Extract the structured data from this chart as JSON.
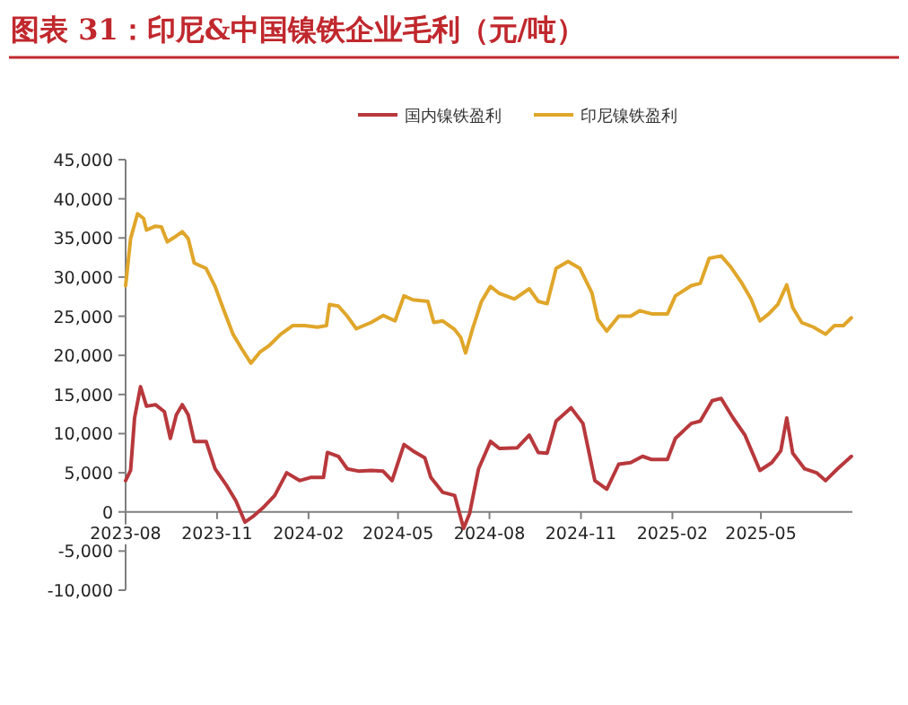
{
  "chart_data": {
    "type": "line",
    "title": "图表 31：印尼&中国镍铁企业毛利（元/吨）",
    "legend": "top",
    "xlim": [
      "2023-08-01",
      "2025-08-01"
    ],
    "xticks": [
      {
        "value": "2023-08-01",
        "label": "2023-08"
      },
      {
        "value": "2023-11-01",
        "label": "2023-11"
      },
      {
        "value": "2024-02-01",
        "label": "2024-02"
      },
      {
        "value": "2024-05-01",
        "label": "2024-05"
      },
      {
        "value": "2024-08-01",
        "label": "2024-08"
      },
      {
        "value": "2024-11-01",
        "label": "2024-11"
      },
      {
        "value": "2025-02-01",
        "label": "2025-02"
      },
      {
        "value": "2025-05-01",
        "label": "2025-05"
      }
    ],
    "ylim": [
      -10000,
      45000
    ],
    "yticks": [
      {
        "value": -10000,
        "label": "-10,000"
      },
      {
        "value": -5000,
        "label": "-5,000"
      },
      0,
      {
        "value": 5000,
        "label": "5,000"
      },
      {
        "value": 10000,
        "label": "10,000"
      },
      {
        "value": 15000,
        "label": "15,000"
      },
      {
        "value": 20000,
        "label": "20,000"
      },
      {
        "value": 25000,
        "label": "25,000"
      },
      {
        "value": 30000,
        "label": "30,000"
      },
      {
        "value": 35000,
        "label": "35,000"
      },
      {
        "value": 40000,
        "label": "40,000"
      },
      {
        "value": 45000,
        "label": "45,000"
      }
    ],
    "series": [
      {
        "name": "国内镍铁盈利",
        "color": "#b8383c",
        "x": [
          "2023-08-01",
          "2023-08-06",
          "2023-08-10",
          "2023-08-16",
          "2023-08-22",
          "2023-08-31",
          "2023-09-09",
          "2023-09-15",
          "2023-09-21",
          "2023-09-27",
          "2023-10-03",
          "2023-10-09",
          "2023-10-21",
          "2023-10-30",
          "2023-11-11",
          "2023-11-20",
          "2023-11-29",
          "2023-12-08",
          "2023-12-17",
          "2023-12-29",
          "2024-01-10",
          "2024-01-23",
          "2024-02-03",
          "2024-02-16",
          "2024-02-20",
          "2024-03-02",
          "2024-03-11",
          "2024-03-23",
          "2024-04-04",
          "2024-04-16",
          "2024-04-25",
          "2024-05-07",
          "2024-05-16",
          "2024-05-28",
          "2024-06-03",
          "2024-06-15",
          "2024-06-27",
          "2024-07-06",
          "2024-07-12",
          "2024-07-21",
          "2024-08-02",
          "2024-08-11",
          "2024-08-29",
          "2024-09-10",
          "2024-09-19",
          "2024-09-28",
          "2024-10-07",
          "2024-10-22",
          "2024-11-03",
          "2024-11-15",
          "2024-11-27",
          "2024-12-09",
          "2024-12-21",
          "2025-01-02",
          "2025-01-11",
          "2025-01-27",
          "2025-02-04",
          "2025-02-20",
          "2025-03-01",
          "2025-03-13",
          "2025-03-22",
          "2025-04-03",
          "2025-04-15",
          "2025-04-30",
          "2025-05-12",
          "2025-05-21",
          "2025-05-27",
          "2025-06-02",
          "2025-06-14",
          "2025-06-26",
          "2025-07-05",
          "2025-07-17",
          "2025-07-31"
        ],
        "values": [
          4000,
          5300,
          12000,
          16000,
          13500,
          13700,
          12800,
          9400,
          12400,
          13700,
          12400,
          9000,
          9000,
          5500,
          3300,
          1400,
          -1300,
          -500,
          500,
          2100,
          5000,
          4000,
          4400,
          4400,
          7600,
          7100,
          5500,
          5200,
          5300,
          5200,
          4000,
          8600,
          7800,
          6900,
          4400,
          2500,
          2100,
          -2100,
          -200,
          5500,
          9000,
          8100,
          8200,
          9800,
          7600,
          7500,
          11600,
          13300,
          11300,
          4000,
          2900,
          6100,
          6300,
          7100,
          6700,
          6700,
          9400,
          11300,
          11600,
          14200,
          14500,
          12000,
          9800,
          5300,
          6300,
          7800,
          12000,
          7500,
          5500,
          5000,
          4000,
          5500,
          7100
        ]
      },
      {
        "name": "印尼镍铁盈利",
        "color": "#e0a62a",
        "x": [
          "2023-08-01",
          "2023-08-06",
          "2023-08-13",
          "2023-08-19",
          "2023-08-22",
          "2023-08-31",
          "2023-09-06",
          "2023-09-12",
          "2023-09-18",
          "2023-09-27",
          "2023-10-03",
          "2023-10-09",
          "2023-10-21",
          "2023-10-30",
          "2023-11-08",
          "2023-11-17",
          "2023-11-26",
          "2023-12-05",
          "2023-12-14",
          "2023-12-23",
          "2024-01-04",
          "2024-01-16",
          "2024-01-28",
          "2024-02-10",
          "2024-02-19",
          "2024-02-22",
          "2024-03-02",
          "2024-03-11",
          "2024-03-20",
          "2024-04-04",
          "2024-04-16",
          "2024-04-28",
          "2024-05-07",
          "2024-05-16",
          "2024-05-31",
          "2024-06-06",
          "2024-06-15",
          "2024-06-27",
          "2024-07-03",
          "2024-07-08",
          "2024-07-15",
          "2024-07-24",
          "2024-08-02",
          "2024-08-11",
          "2024-08-26",
          "2024-09-10",
          "2024-09-19",
          "2024-09-28",
          "2024-10-07",
          "2024-10-19",
          "2024-10-31",
          "2024-11-12",
          "2024-11-18",
          "2024-11-27",
          "2024-12-09",
          "2024-12-21",
          "2024-12-30",
          "2025-01-11",
          "2025-01-27",
          "2025-02-04",
          "2025-02-20",
          "2025-03-01",
          "2025-03-10",
          "2025-03-22",
          "2025-03-31",
          "2025-04-12",
          "2025-04-21",
          "2025-04-30",
          "2025-05-09",
          "2025-05-18",
          "2025-05-27",
          "2025-06-02",
          "2025-06-11",
          "2025-06-23",
          "2025-07-05",
          "2025-07-14",
          "2025-07-23",
          "2025-07-31"
        ],
        "values": [
          28900,
          34900,
          38100,
          37500,
          36000,
          36500,
          36400,
          34500,
          35000,
          35800,
          34900,
          31800,
          31100,
          28800,
          25700,
          22700,
          20800,
          19000,
          20400,
          21200,
          22700,
          23800,
          23800,
          23600,
          23800,
          26500,
          26300,
          25000,
          23400,
          24200,
          25100,
          24400,
          27600,
          27100,
          26900,
          24200,
          24400,
          23300,
          22300,
          20300,
          23400,
          26900,
          28800,
          27900,
          27200,
          28500,
          26900,
          26600,
          31100,
          32000,
          31100,
          28000,
          24600,
          23100,
          25000,
          25000,
          25700,
          25300,
          25300,
          27600,
          28900,
          29200,
          32400,
          32700,
          31400,
          29200,
          27200,
          24400,
          25300,
          26500,
          29000,
          26100,
          24200,
          23600,
          22700,
          23800,
          23800,
          24800
        ]
      }
    ]
  }
}
